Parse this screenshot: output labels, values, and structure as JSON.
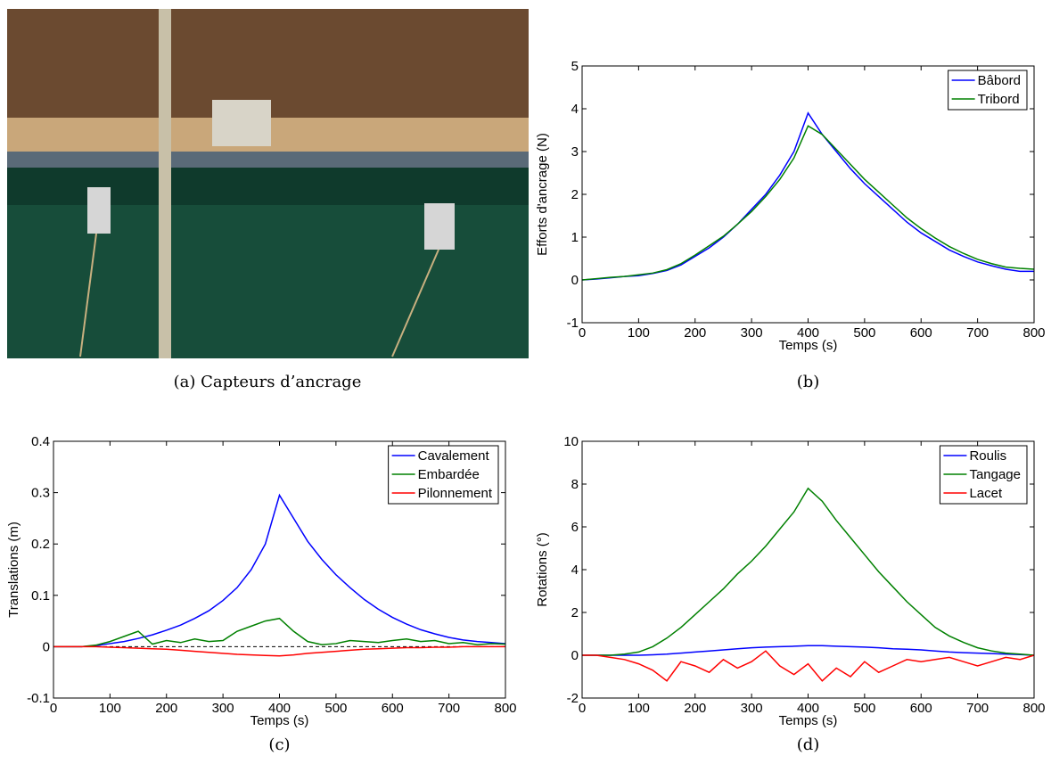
{
  "photo": {
    "caption": "(a) Capteurs d’ancrage"
  },
  "chart_data": [
    {
      "type": "line",
      "caption": "(b)",
      "xlabel": "Temps (s)",
      "ylabel": "Efforts d'ancrage (N)",
      "x": [
        0,
        25,
        50,
        75,
        100,
        125,
        150,
        175,
        200,
        225,
        250,
        275,
        300,
        325,
        350,
        375,
        400,
        425,
        450,
        475,
        500,
        525,
        550,
        575,
        600,
        625,
        650,
        675,
        700,
        725,
        750,
        775,
        800
      ],
      "xlim": [
        0,
        800
      ],
      "ylim": [
        -1,
        5
      ],
      "xticks": [
        0,
        100,
        200,
        300,
        400,
        500,
        600,
        700,
        800
      ],
      "yticks": [
        -1,
        0,
        1,
        2,
        3,
        4,
        5
      ],
      "legend": "upper right",
      "series": [
        {
          "name": "Bâbord",
          "color": "#0000ff",
          "values": [
            0,
            0.02,
            0.05,
            0.08,
            0.1,
            0.15,
            0.22,
            0.35,
            0.55,
            0.75,
            1.0,
            1.3,
            1.65,
            2.0,
            2.45,
            3.0,
            3.9,
            3.4,
            3.0,
            2.6,
            2.25,
            1.95,
            1.65,
            1.35,
            1.1,
            0.9,
            0.7,
            0.55,
            0.42,
            0.33,
            0.25,
            0.2,
            0.2
          ]
        },
        {
          "name": "Tribord",
          "color": "#008000",
          "values": [
            0,
            0.03,
            0.06,
            0.08,
            0.12,
            0.16,
            0.24,
            0.38,
            0.58,
            0.8,
            1.02,
            1.3,
            1.6,
            1.95,
            2.35,
            2.85,
            3.6,
            3.4,
            3.05,
            2.7,
            2.35,
            2.05,
            1.75,
            1.45,
            1.2,
            0.98,
            0.78,
            0.62,
            0.48,
            0.38,
            0.3,
            0.27,
            0.25
          ]
        }
      ]
    },
    {
      "type": "line",
      "caption": "(c)",
      "xlabel": "Temps (s)",
      "ylabel": "Translations (m)",
      "x": [
        0,
        25,
        50,
        75,
        100,
        125,
        150,
        175,
        200,
        225,
        250,
        275,
        300,
        325,
        350,
        375,
        400,
        425,
        450,
        475,
        500,
        525,
        550,
        575,
        600,
        625,
        650,
        675,
        700,
        725,
        750,
        775,
        800
      ],
      "xlim": [
        0,
        800
      ],
      "ylim": [
        -0.1,
        0.4
      ],
      "xticks": [
        0,
        100,
        200,
        300,
        400,
        500,
        600,
        700,
        800
      ],
      "yticks": [
        -0.1,
        0,
        0.1,
        0.2,
        0.3,
        0.4
      ],
      "legend": "upper right",
      "zero_line": true,
      "series": [
        {
          "name": "Cavalement",
          "color": "#0000ff",
          "values": [
            0,
            0,
            0,
            0.002,
            0.006,
            0.01,
            0.016,
            0.023,
            0.032,
            0.042,
            0.055,
            0.07,
            0.09,
            0.115,
            0.15,
            0.2,
            0.295,
            0.25,
            0.205,
            0.17,
            0.14,
            0.115,
            0.092,
            0.073,
            0.057,
            0.044,
            0.033,
            0.025,
            0.018,
            0.013,
            0.01,
            0.008,
            0.006
          ]
        },
        {
          "name": "Embardée",
          "color": "#008000",
          "values": [
            0,
            0,
            0,
            0.003,
            0.01,
            0.02,
            0.03,
            0.005,
            0.012,
            0.008,
            0.015,
            0.01,
            0.012,
            0.03,
            0.04,
            0.05,
            0.055,
            0.03,
            0.01,
            0.004,
            0.006,
            0.012,
            0.01,
            0.008,
            0.012,
            0.015,
            0.01,
            0.012,
            0.006,
            0.008,
            0.004,
            0.006,
            0.005
          ]
        },
        {
          "name": "Pilonnement",
          "color": "#ff0000",
          "values": [
            0,
            0,
            0,
            0,
            -0.001,
            -0.002,
            -0.003,
            -0.004,
            -0.005,
            -0.007,
            -0.009,
            -0.011,
            -0.013,
            -0.015,
            -0.016,
            -0.017,
            -0.018,
            -0.016,
            -0.013,
            -0.011,
            -0.009,
            -0.007,
            -0.005,
            -0.004,
            -0.003,
            -0.002,
            -0.002,
            -0.001,
            -0.001,
            0,
            0,
            0,
            0
          ]
        }
      ]
    },
    {
      "type": "line",
      "caption": "(d)",
      "xlabel": "Temps (s)",
      "ylabel": "Rotations (°)",
      "x": [
        0,
        25,
        50,
        75,
        100,
        125,
        150,
        175,
        200,
        225,
        250,
        275,
        300,
        325,
        350,
        375,
        400,
        425,
        450,
        475,
        500,
        525,
        550,
        575,
        600,
        625,
        650,
        675,
        700,
        725,
        750,
        775,
        800
      ],
      "xlim": [
        0,
        800
      ],
      "ylim": [
        -2,
        10
      ],
      "xticks": [
        0,
        100,
        200,
        300,
        400,
        500,
        600,
        700,
        800
      ],
      "yticks": [
        -2,
        0,
        2,
        4,
        6,
        8,
        10
      ],
      "legend": "upper right",
      "series": [
        {
          "name": "Roulis",
          "color": "#0000ff",
          "values": [
            0,
            0,
            0,
            0,
            0,
            0.02,
            0.05,
            0.1,
            0.15,
            0.2,
            0.25,
            0.3,
            0.35,
            0.38,
            0.4,
            0.42,
            0.45,
            0.45,
            0.42,
            0.4,
            0.38,
            0.35,
            0.3,
            0.28,
            0.25,
            0.2,
            0.15,
            0.12,
            0.1,
            0.08,
            0.05,
            0.03,
            0
          ]
        },
        {
          "name": "Tangage",
          "color": "#008000",
          "values": [
            0,
            0,
            0,
            0.05,
            0.15,
            0.4,
            0.8,
            1.3,
            1.9,
            2.5,
            3.1,
            3.8,
            4.4,
            5.1,
            5.9,
            6.7,
            7.8,
            7.2,
            6.3,
            5.5,
            4.7,
            3.9,
            3.2,
            2.5,
            1.9,
            1.3,
            0.9,
            0.6,
            0.35,
            0.2,
            0.1,
            0.05,
            0
          ]
        },
        {
          "name": "Lacet",
          "color": "#ff0000",
          "values": [
            0,
            0,
            -0.1,
            -0.2,
            -0.4,
            -0.7,
            -1.2,
            -0.3,
            -0.5,
            -0.8,
            -0.2,
            -0.6,
            -0.3,
            0.2,
            -0.5,
            -0.9,
            -0.4,
            -1.2,
            -0.6,
            -1.0,
            -0.3,
            -0.8,
            -0.5,
            -0.2,
            -0.3,
            -0.2,
            -0.1,
            -0.3,
            -0.5,
            -0.3,
            -0.1,
            -0.2,
            0
          ]
        }
      ]
    }
  ]
}
